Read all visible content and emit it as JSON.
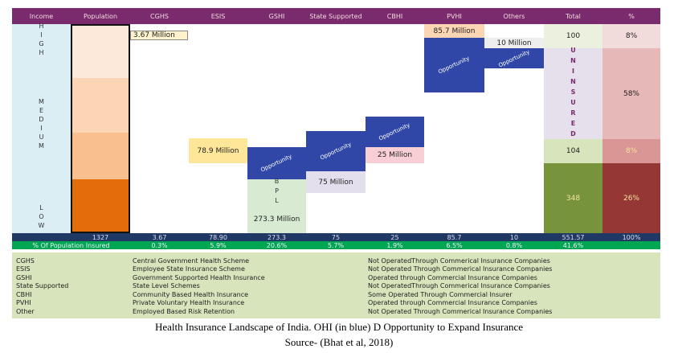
{
  "header": [
    "Income",
    "Population",
    "CGHS",
    "ESIS",
    "GSHI",
    "State Supported",
    "CBHI",
    "PVHI",
    "Others",
    "Total",
    "%"
  ],
  "income_levels": [
    "HIGH",
    "MEDIUM",
    "LOW"
  ],
  "cells": [
    "3.67 Million",
    "78.9 Million",
    "Opportunity",
    "BPL",
    "273.3 Million",
    "Opportunity",
    "75 Million",
    "Opportunity",
    "25 Million",
    "85.7 Million",
    "Opportunity",
    "10 Million",
    "Opportunity",
    "100",
    "UNINSURED",
    "104",
    "348",
    "8%",
    "58%",
    "8%",
    "26%"
  ],
  "totals": [
    "1327",
    "3.67",
    "78.90",
    "273.3",
    "75",
    "25",
    "85.7",
    "10",
    "551.57",
    "100%"
  ],
  "percent_row": {
    "label": "% Of Population Insured",
    "values": [
      "0.3%",
      "5.9%",
      "20.6%",
      "5.7%",
      "1.9%",
      "6.5%",
      "0.8%",
      "41.6%"
    ]
  },
  "legend": [
    [
      "CGHS",
      "Central Government Health Scheme",
      "Not OperatedThrough Commerical Insurance Companies"
    ],
    [
      "ESIS",
      "Employee State Insurance Scheme",
      "Not Operated Through Commerical Insurance Companies"
    ],
    [
      "GSHI",
      "Government Supported Health Insurance",
      "Operated through Commercial Insurance Companies"
    ],
    [
      "State Supported",
      "State Level Schemes",
      "Not OperatedThrough Commerical Insurance Companies"
    ],
    [
      "CBHI",
      "Community Based Health Insurance",
      "Some Operated Through Commercial Insurer"
    ],
    [
      "PVHI",
      "Private Voluntary Health Insurance",
      "Operated through Commercial Insurance Companies"
    ],
    [
      "Other",
      "Employed Based Risk Retention",
      "Not Operated Through Commerical Insurance Companies"
    ]
  ],
  "caption": [
    "Health Insurance Landscape of India. OHI (in blue) D Opportunity to Expand Insurance",
    "Source- (Bhat et al, 2018)"
  ]
}
